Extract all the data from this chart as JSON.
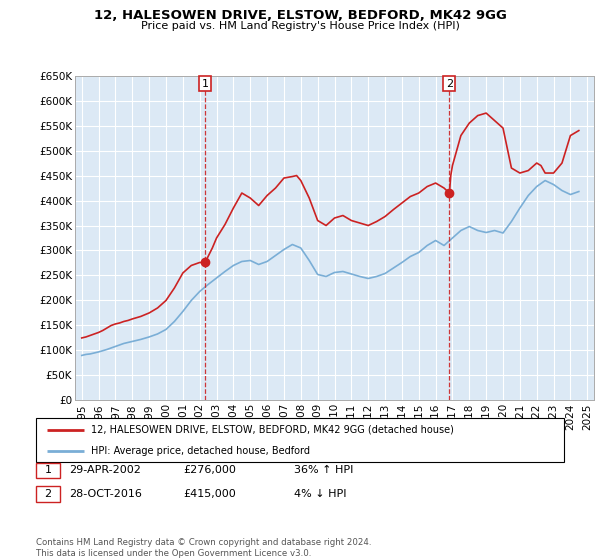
{
  "title": "12, HALESOWEN DRIVE, ELSTOW, BEDFORD, MK42 9GG",
  "subtitle": "Price paid vs. HM Land Registry's House Price Index (HPI)",
  "ylim": [
    0,
    650000
  ],
  "yticks": [
    0,
    50000,
    100000,
    150000,
    200000,
    250000,
    300000,
    350000,
    400000,
    450000,
    500000,
    550000,
    600000,
    650000
  ],
  "ytick_labels": [
    "£0",
    "£50K",
    "£100K",
    "£150K",
    "£200K",
    "£250K",
    "£300K",
    "£350K",
    "£400K",
    "£450K",
    "£500K",
    "£550K",
    "£600K",
    "£650K"
  ],
  "xlim_start": 1994.6,
  "xlim_end": 2025.4,
  "background_color": "#ffffff",
  "chart_bg_color": "#dce9f5",
  "grid_color": "#ffffff",
  "transaction1": {
    "year": 2002.32,
    "price": 276000,
    "label": "1",
    "date": "29-APR-2002",
    "pct": "36%",
    "dir": "↑"
  },
  "transaction2": {
    "year": 2016.82,
    "price": 415000,
    "label": "2",
    "date": "28-OCT-2016",
    "pct": "4%",
    "dir": "↓"
  },
  "legend_line1": "12, HALESOWEN DRIVE, ELSTOW, BEDFORD, MK42 9GG (detached house)",
  "legend_line2": "HPI: Average price, detached house, Bedford",
  "footer": "Contains HM Land Registry data © Crown copyright and database right 2024.\nThis data is licensed under the Open Government Licence v3.0.",
  "red_color": "#cc2222",
  "blue_color": "#7aaed6",
  "red_years": [
    1995.0,
    1995.25,
    1995.5,
    1995.75,
    1996.0,
    1996.25,
    1996.5,
    1996.75,
    1997.0,
    1997.25,
    1997.5,
    1997.75,
    1998.0,
    1998.5,
    1999.0,
    1999.5,
    2000.0,
    2000.5,
    2001.0,
    2001.5,
    2002.0,
    2002.32,
    2002.75,
    2003.0,
    2003.5,
    2004.0,
    2004.5,
    2005.0,
    2005.5,
    2006.0,
    2006.5,
    2007.0,
    2007.5,
    2007.75,
    2008.0,
    2008.5,
    2009.0,
    2009.5,
    2010.0,
    2010.5,
    2011.0,
    2011.5,
    2012.0,
    2012.5,
    2013.0,
    2013.5,
    2014.0,
    2014.5,
    2015.0,
    2015.5,
    2016.0,
    2016.5,
    2016.82,
    2016.9,
    2017.0,
    2017.25,
    2017.5,
    2018.0,
    2018.5,
    2019.0,
    2019.5,
    2020.0,
    2020.5,
    2021.0,
    2021.5,
    2022.0,
    2022.25,
    2022.5,
    2023.0,
    2023.5,
    2024.0,
    2024.5
  ],
  "red_values": [
    125000,
    127000,
    130000,
    133000,
    136000,
    140000,
    145000,
    150000,
    153000,
    155000,
    158000,
    160000,
    163000,
    168000,
    175000,
    185000,
    200000,
    225000,
    255000,
    270000,
    276000,
    276000,
    305000,
    325000,
    352000,
    385000,
    415000,
    405000,
    390000,
    410000,
    425000,
    445000,
    448000,
    450000,
    440000,
    405000,
    360000,
    350000,
    365000,
    370000,
    360000,
    355000,
    350000,
    358000,
    368000,
    382000,
    395000,
    408000,
    415000,
    428000,
    435000,
    425000,
    415000,
    450000,
    470000,
    500000,
    530000,
    555000,
    570000,
    575000,
    560000,
    545000,
    465000,
    455000,
    460000,
    475000,
    470000,
    455000,
    455000,
    475000,
    530000,
    540000
  ],
  "blue_years": [
    1995.0,
    1995.25,
    1995.5,
    1995.75,
    1996.0,
    1996.5,
    1997.0,
    1997.5,
    1998.0,
    1998.5,
    1999.0,
    1999.5,
    2000.0,
    2000.5,
    2001.0,
    2001.5,
    2002.0,
    2002.5,
    2003.0,
    2003.5,
    2004.0,
    2004.5,
    2005.0,
    2005.5,
    2006.0,
    2006.5,
    2007.0,
    2007.5,
    2008.0,
    2008.5,
    2009.0,
    2009.5,
    2010.0,
    2010.5,
    2011.0,
    2011.5,
    2012.0,
    2012.5,
    2013.0,
    2013.5,
    2014.0,
    2014.5,
    2015.0,
    2015.5,
    2016.0,
    2016.5,
    2017.0,
    2017.5,
    2018.0,
    2018.5,
    2019.0,
    2019.5,
    2020.0,
    2020.5,
    2021.0,
    2021.5,
    2022.0,
    2022.5,
    2023.0,
    2023.5,
    2024.0,
    2024.5
  ],
  "blue_values": [
    90000,
    92000,
    93000,
    95000,
    97000,
    102000,
    108000,
    114000,
    118000,
    122000,
    127000,
    133000,
    142000,
    158000,
    178000,
    200000,
    218000,
    232000,
    245000,
    258000,
    270000,
    278000,
    280000,
    272000,
    278000,
    290000,
    302000,
    312000,
    305000,
    280000,
    252000,
    248000,
    256000,
    258000,
    253000,
    248000,
    244000,
    248000,
    254000,
    265000,
    276000,
    288000,
    296000,
    310000,
    320000,
    310000,
    325000,
    340000,
    348000,
    340000,
    336000,
    340000,
    335000,
    358000,
    385000,
    410000,
    428000,
    440000,
    432000,
    420000,
    412000,
    418000
  ]
}
